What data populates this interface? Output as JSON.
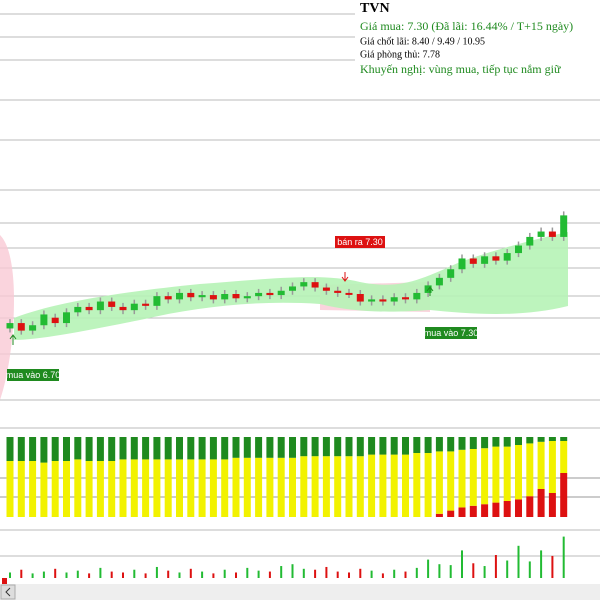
{
  "chart_data": {
    "type": "candlestick",
    "title": "TVN",
    "info": {
      "buy": "Giá mua: 7.30 (Đã lãi: 16.44% / T+15 ngày)",
      "take_profit": "Giá chốt lãi: 8.40 / 9.49 / 10.95",
      "stop_loss": "Giá phòng thủ: 7.78",
      "advice": "Khuyến nghị: vùng mua, tiếp tục nắm giữ"
    },
    "annotations": {
      "sell": "bán ra 7.30",
      "buy_mid": "mua vào 7.30",
      "buy_left": "mua vào 6.70"
    },
    "up_color": "#22bb33",
    "down_color": "#dd1111",
    "ylim": [
      6.1,
      10.0
    ],
    "candles": [
      [
        6.95,
        7.0
      ],
      [
        7.0,
        6.93
      ],
      [
        6.93,
        6.98
      ],
      [
        6.98,
        7.08
      ],
      [
        7.05,
        7.0
      ],
      [
        7.0,
        7.1
      ],
      [
        7.1,
        7.15
      ],
      [
        7.15,
        7.12
      ],
      [
        7.12,
        7.2
      ],
      [
        7.2,
        7.15
      ],
      [
        7.15,
        7.12
      ],
      [
        7.12,
        7.18
      ],
      [
        7.18,
        7.16
      ],
      [
        7.16,
        7.25
      ],
      [
        7.25,
        7.22
      ],
      [
        7.22,
        7.28
      ],
      [
        7.28,
        7.24
      ],
      [
        7.24,
        7.26
      ],
      [
        7.26,
        7.22
      ],
      [
        7.22,
        7.27
      ],
      [
        7.27,
        7.23
      ],
      [
        7.23,
        7.25
      ],
      [
        7.25,
        7.28
      ],
      [
        7.28,
        7.26
      ],
      [
        7.26,
        7.3
      ],
      [
        7.3,
        7.34
      ],
      [
        7.34,
        7.38
      ],
      [
        7.38,
        7.33
      ],
      [
        7.33,
        7.3
      ],
      [
        7.3,
        7.28
      ],
      [
        7.28,
        7.27
      ],
      [
        7.27,
        7.2
      ],
      [
        7.2,
        7.22
      ],
      [
        7.22,
        7.2
      ],
      [
        7.2,
        7.24
      ],
      [
        7.24,
        7.22
      ],
      [
        7.22,
        7.28
      ],
      [
        7.28,
        7.35
      ],
      [
        7.35,
        7.42
      ],
      [
        7.42,
        7.5
      ],
      [
        7.5,
        7.6
      ],
      [
        7.6,
        7.55
      ],
      [
        7.55,
        7.62
      ],
      [
        7.62,
        7.58
      ],
      [
        7.58,
        7.65
      ],
      [
        7.65,
        7.72
      ],
      [
        7.72,
        7.8
      ],
      [
        7.8,
        7.85
      ],
      [
        7.85,
        7.8
      ],
      [
        7.8,
        8.0
      ]
    ],
    "oscillator": {
      "ylim": [
        0,
        100
      ],
      "series": [
        {
          "color": "#dd1111",
          "values": [
            0,
            0,
            0,
            0,
            0,
            0,
            0,
            0,
            0,
            0,
            0,
            0,
            0,
            0,
            0,
            0,
            0,
            0,
            0,
            0,
            0,
            0,
            0,
            0,
            0,
            0,
            0,
            0,
            0,
            0,
            0,
            0,
            0,
            0,
            0,
            0,
            0,
            0,
            4,
            8,
            12,
            14,
            16,
            18,
            20,
            22,
            26,
            35,
            30,
            55
          ]
        },
        {
          "color": "#f2f200",
          "values": [
            70,
            70,
            70,
            68,
            70,
            70,
            72,
            70,
            70,
            70,
            72,
            72,
            72,
            72,
            72,
            72,
            72,
            72,
            72,
            72,
            74,
            74,
            74,
            74,
            74,
            74,
            76,
            76,
            76,
            76,
            76,
            76,
            78,
            78,
            78,
            78,
            80,
            80,
            78,
            74,
            72,
            71,
            70,
            70,
            68,
            68,
            66,
            59,
            65,
            40
          ]
        },
        {
          "color": "#1f8a1f",
          "values": [
            30,
            30,
            30,
            32,
            30,
            30,
            28,
            30,
            30,
            30,
            28,
            28,
            28,
            28,
            28,
            28,
            28,
            28,
            28,
            28,
            26,
            26,
            26,
            26,
            26,
            26,
            24,
            24,
            24,
            24,
            24,
            24,
            22,
            22,
            22,
            22,
            20,
            20,
            18,
            18,
            16,
            15,
            14,
            12,
            12,
            10,
            8,
            6,
            5,
            5
          ]
        }
      ]
    },
    "volume": {
      "ylim": [
        0,
        100
      ],
      "values": [
        12,
        18,
        10,
        14,
        20,
        12,
        16,
        10,
        22,
        14,
        12,
        18,
        10,
        24,
        16,
        12,
        20,
        14,
        10,
        18,
        12,
        22,
        16,
        14,
        26,
        30,
        20,
        18,
        24,
        14,
        12,
        20,
        16,
        10,
        18,
        14,
        22,
        40,
        30,
        28,
        60,
        32,
        26,
        50,
        38,
        70,
        36,
        60,
        48,
        90
      ]
    }
  }
}
